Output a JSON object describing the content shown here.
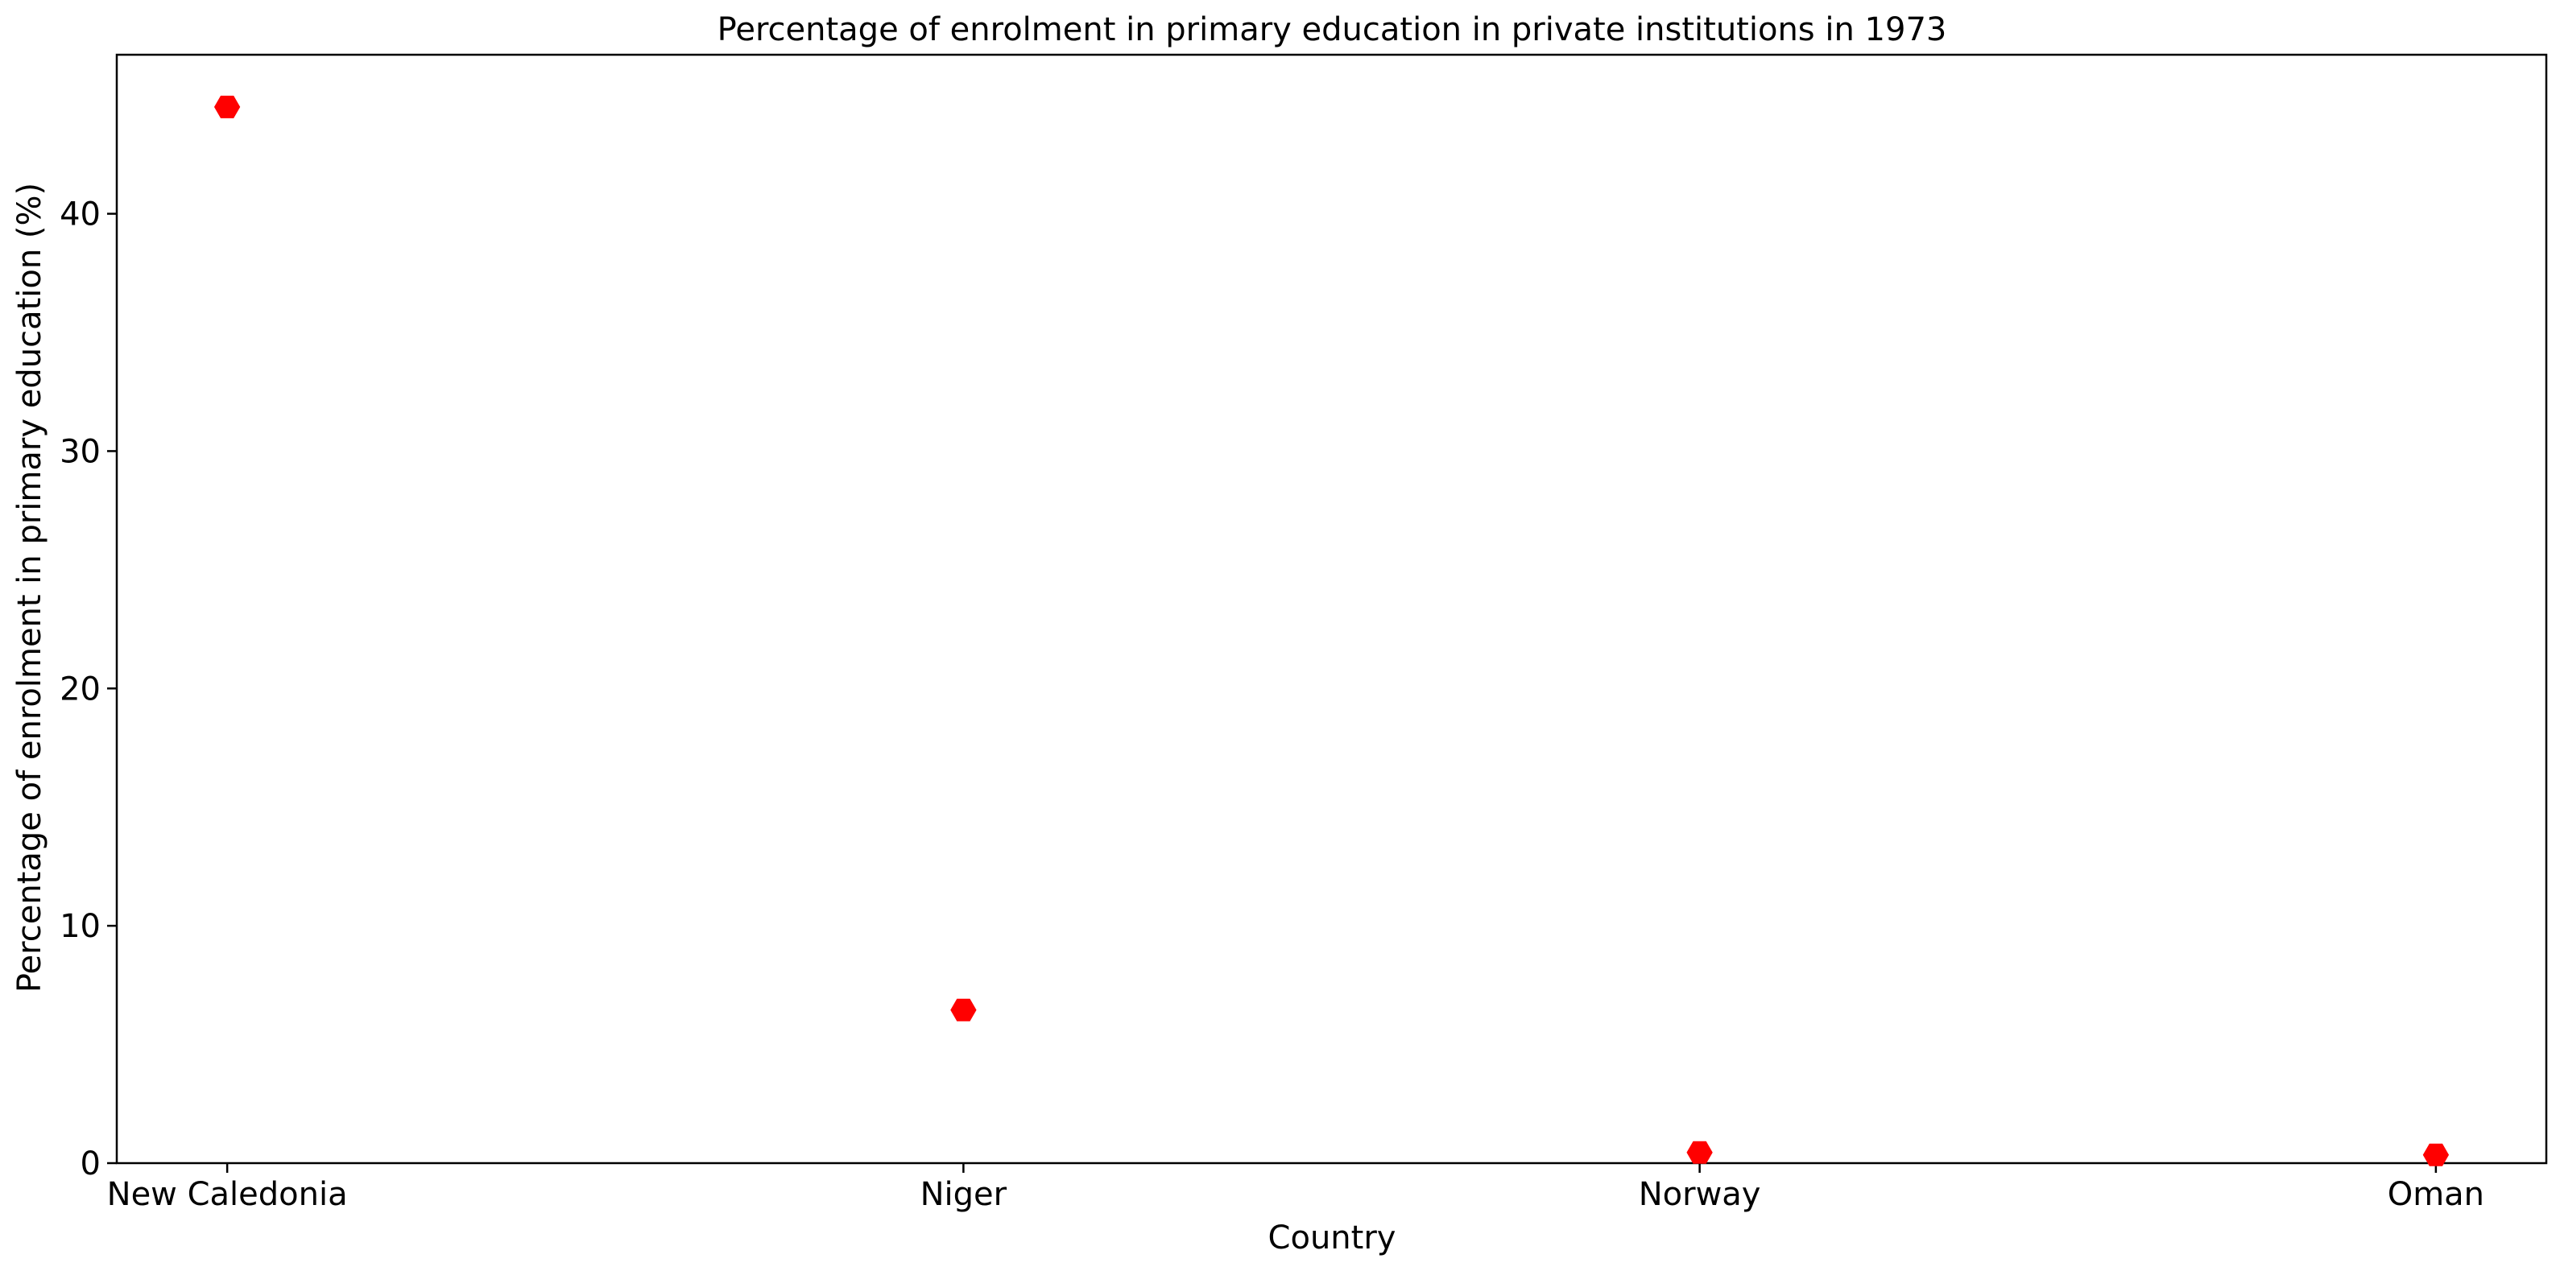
{
  "chart_data": {
    "type": "scatter",
    "title": "Percentage of enrolment in primary education in private institutions in 1973",
    "xlabel": "Country",
    "ylabel": "Percentage of enrolment in primary education (%)",
    "categories": [
      "New Caledonia",
      "Niger",
      "Norway",
      "Oman"
    ],
    "values": [
      44.5,
      6.45,
      0.45,
      0.35
    ],
    "ylim": [
      0,
      46.7
    ],
    "yticks": [
      0,
      10,
      20,
      30,
      40
    ],
    "marker": "hexagon",
    "color": "#ff0000",
    "grid": false,
    "legend": "none"
  }
}
